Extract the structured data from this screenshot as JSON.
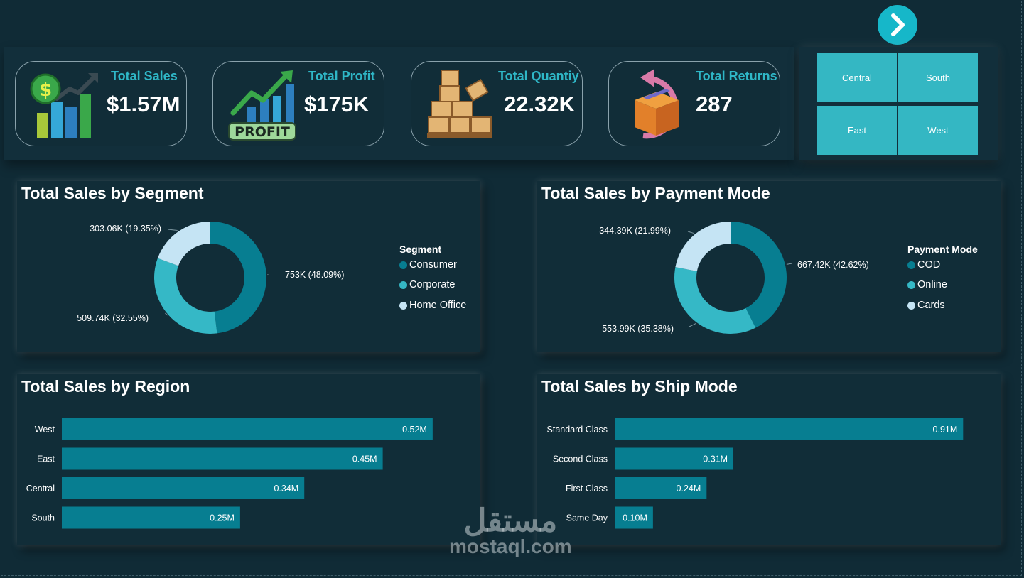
{
  "kpis": [
    {
      "title": "Total Sales",
      "value": "$1.57M",
      "icon": "money-bar-chart-icon"
    },
    {
      "title": "Total Profit",
      "value": "$175K",
      "icon": "profit-growth-icon"
    },
    {
      "title": "Total Quantiy",
      "value": "22.32K",
      "icon": "boxes-pallet-icon"
    },
    {
      "title": "Total Returns",
      "value": "287",
      "icon": "return-box-icon"
    }
  ],
  "regions_slicer": [
    "Central",
    "South",
    "East",
    "West"
  ],
  "colors": {
    "background": "#102b36",
    "panel": "#112d38",
    "accent": "#2fb7c7",
    "dark_teal": "#077e91",
    "mid_teal": "#35b8c6",
    "light_blue": "#c5e4f4"
  },
  "watermark": {
    "arabic": "مستقل",
    "latin": "mostaql.com"
  },
  "chart_data": [
    {
      "type": "pie",
      "title": "Total Sales by Segment",
      "legend_title": "Segment",
      "categories": [
        "Consumer",
        "Corporate",
        "Home Office"
      ],
      "values": [
        753,
        509.74,
        303.06
      ],
      "percents": [
        48.09,
        32.55,
        19.35
      ],
      "labels": [
        "753K (48.09%)",
        "509.74K (32.55%)",
        "303.06K (19.35%)"
      ],
      "colors": [
        "#077e91",
        "#35b8c6",
        "#c5e4f4"
      ],
      "legend_placement": "right"
    },
    {
      "type": "pie",
      "title": "Total Sales by Payment Mode",
      "legend_title": "Payment Mode",
      "categories": [
        "COD",
        "Online",
        "Cards"
      ],
      "values": [
        667.42,
        553.99,
        344.39
      ],
      "percents": [
        42.62,
        35.38,
        21.99
      ],
      "labels": [
        "667.42K (42.62%)",
        "553.99K (35.38%)",
        "344.39K (21.99%)"
      ],
      "colors": [
        "#077e91",
        "#35b8c6",
        "#c5e4f4"
      ],
      "legend_placement": "right"
    },
    {
      "type": "bar",
      "title": "Total Sales by Region",
      "categories": [
        "West",
        "East",
        "Central",
        "South"
      ],
      "values": [
        0.52,
        0.45,
        0.34,
        0.25
      ],
      "labels": [
        "0.52M",
        "0.45M",
        "0.34M",
        "0.25M"
      ],
      "xlim": [
        0,
        0.56
      ],
      "color": "#077e91"
    },
    {
      "type": "bar",
      "title": "Total Sales by Ship Mode",
      "categories": [
        "Standard Class",
        "Second Class",
        "First Class",
        "Same Day"
      ],
      "values": [
        0.91,
        0.31,
        0.24,
        0.1
      ],
      "labels": [
        "0.91M",
        "0.31M",
        "0.24M",
        "0.10M"
      ],
      "xlim": [
        0,
        0.98
      ],
      "color": "#077e91"
    }
  ]
}
